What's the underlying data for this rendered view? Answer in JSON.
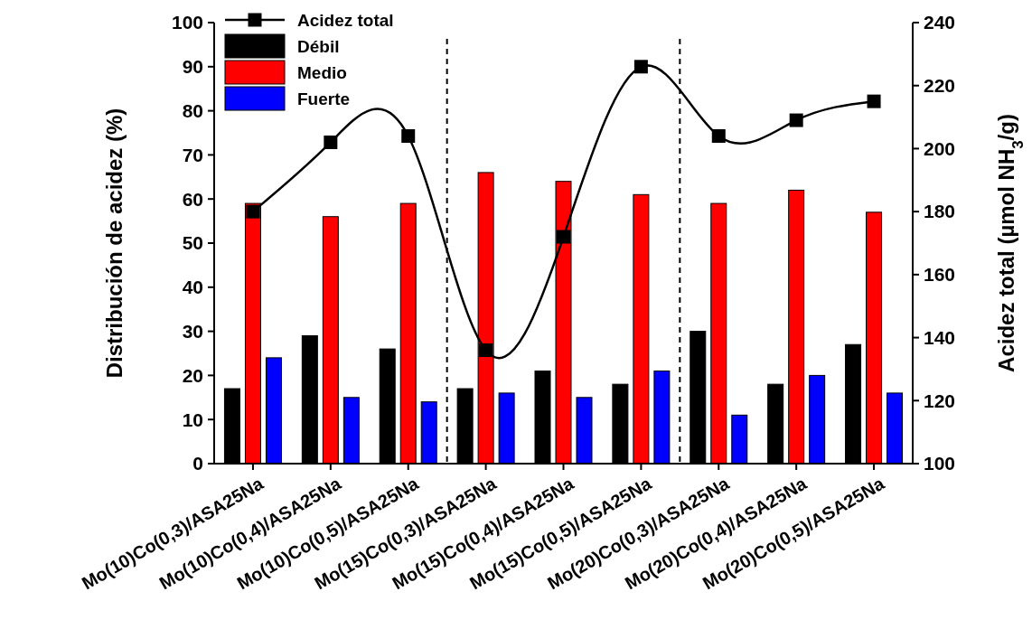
{
  "chart_data": {
    "type": "bar",
    "categories": [
      "Mo(10)Co(0,3)/ASA25Na",
      "Mo(10)Co(0,4)/ASA25Na",
      "Mo(10)Co(0,5)/ASA25Na",
      "Mo(15)Co(0,3)/ASA25Na",
      "Mo(15)Co(0,4)/ASA25Na",
      "Mo(15)Co(0,5)/ASA25Na",
      "Mo(20)Co(0,3)/ASA25Na",
      "Mo(20)Co(0,4)/ASA25Na",
      "Mo(20)Co(0,5)/ASA25Na"
    ],
    "series": [
      {
        "name": "Acidez total",
        "type": "line",
        "axis": "y2",
        "color": "#000000",
        "marker": "square",
        "values": [
          180,
          202,
          204,
          136,
          172,
          226,
          204,
          209,
          215
        ]
      },
      {
        "name": "Débil",
        "color": "#000000",
        "values": [
          17,
          29,
          26,
          17,
          21,
          18,
          30,
          18,
          27
        ]
      },
      {
        "name": "Medio",
        "color": "#ff0000",
        "values": [
          59,
          56,
          59,
          66,
          64,
          61,
          59,
          62,
          57
        ]
      },
      {
        "name": "Fuerte",
        "color": "#0000ff",
        "values": [
          24,
          15,
          14,
          16,
          15,
          21,
          11,
          20,
          16
        ]
      }
    ],
    "ylabel": "Distribución de acidez (%)",
    "y2label": "Acidez total (µmol NH$_{3}$/g)",
    "ylim": [
      0,
      100
    ],
    "yticks": [
      0,
      10,
      20,
      30,
      40,
      50,
      60,
      70,
      80,
      90,
      100
    ],
    "y2lim": [
      100,
      240
    ],
    "y2ticks": [
      100,
      120,
      140,
      160,
      180,
      200,
      220,
      240
    ],
    "legend": "top left",
    "grid": false
  }
}
